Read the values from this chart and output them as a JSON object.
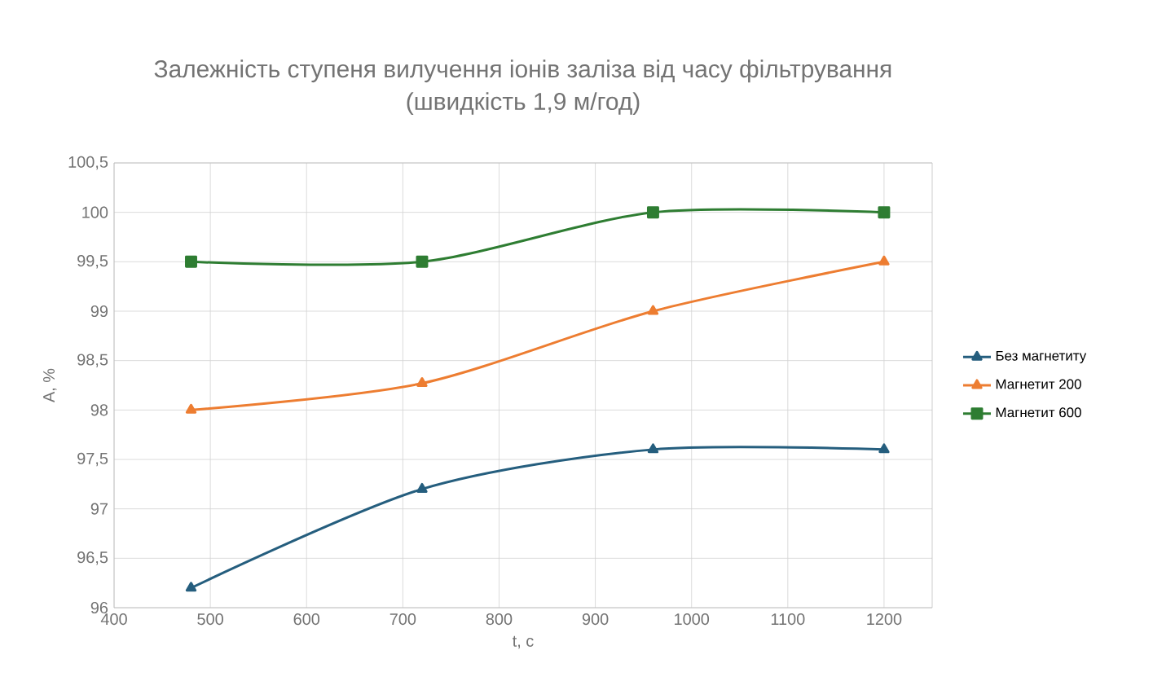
{
  "chart_data": {
    "type": "line",
    "title": "Залежність ступеня вилучення іонів заліза від часу фільтрування",
    "subtitle": "(швидкість 1,9 м/год)",
    "xlabel": "t, c",
    "ylabel": "A, %",
    "x": [
      480,
      720,
      960,
      1200
    ],
    "series": [
      {
        "name": "Без магнетиту",
        "color": "#255e7e",
        "marker": "triangle",
        "values": [
          96.2,
          97.2,
          97.6,
          97.6
        ]
      },
      {
        "name": "Магнетит 200",
        "color": "#ed7d31",
        "marker": "triangle",
        "values": [
          98,
          98.27,
          99,
          99.5
        ]
      },
      {
        "name": "Магнетит 600",
        "color": "#2e7d32",
        "marker": "square",
        "values": [
          99.5,
          99.5,
          100,
          100
        ]
      }
    ],
    "xlim": [
      400,
      1250
    ],
    "xticks": [
      400,
      500,
      600,
      700,
      800,
      900,
      1000,
      1100,
      1200
    ],
    "ylim": [
      96,
      100.5
    ],
    "yticks": [
      {
        "value": 96,
        "label": "96"
      },
      {
        "value": 96.5,
        "label": "96,5"
      },
      {
        "value": 97,
        "label": "97"
      },
      {
        "value": 97.5,
        "label": "97,5"
      },
      {
        "value": 98,
        "label": "98"
      },
      {
        "value": 98.5,
        "label": "98,5"
      },
      {
        "value": 99,
        "label": "99"
      },
      {
        "value": 99.5,
        "label": "99,5"
      },
      {
        "value": 100,
        "label": "100"
      },
      {
        "value": 100.5,
        "label": "100,5"
      }
    ],
    "grid": true,
    "legend": "right",
    "line_style": "solid"
  }
}
